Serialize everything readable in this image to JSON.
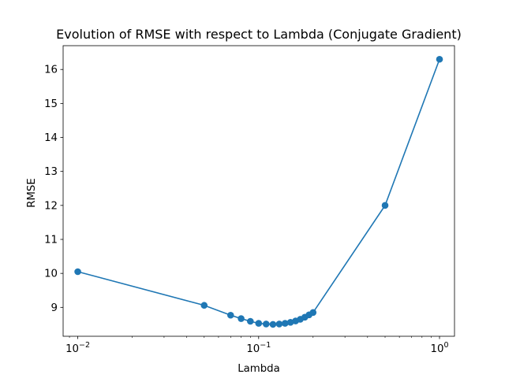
{
  "chart_data": {
    "type": "line",
    "title": "Evolution of RMSE with respect to Lambda (Conjugate Gradient)",
    "xlabel": "Lambda",
    "ylabel": "RMSE",
    "x_scale": "log",
    "xlim": [
      0.0083,
      1.21
    ],
    "ylim": [
      8.15,
      16.7
    ],
    "x_ticks": [
      {
        "value": 0.01,
        "base": "10",
        "exp": "−2"
      },
      {
        "value": 0.1,
        "base": "10",
        "exp": "−1"
      },
      {
        "value": 1,
        "base": "10",
        "exp": "0"
      }
    ],
    "y_ticks": [
      9,
      10,
      11,
      12,
      13,
      14,
      15,
      16
    ],
    "grid": false,
    "color": "#1f77b4",
    "marker": "circle",
    "series": [
      {
        "x": [
          0.01,
          0.05,
          0.07,
          0.08,
          0.09,
          0.1,
          0.11,
          0.12,
          0.13,
          0.14,
          0.15,
          0.16,
          0.17,
          0.18,
          0.19,
          0.2,
          0.5,
          1.0
        ],
        "y": [
          10.05,
          9.06,
          8.77,
          8.67,
          8.59,
          8.53,
          8.51,
          8.5,
          8.51,
          8.53,
          8.56,
          8.6,
          8.65,
          8.71,
          8.78,
          8.85,
          12.0,
          16.3
        ]
      }
    ]
  }
}
